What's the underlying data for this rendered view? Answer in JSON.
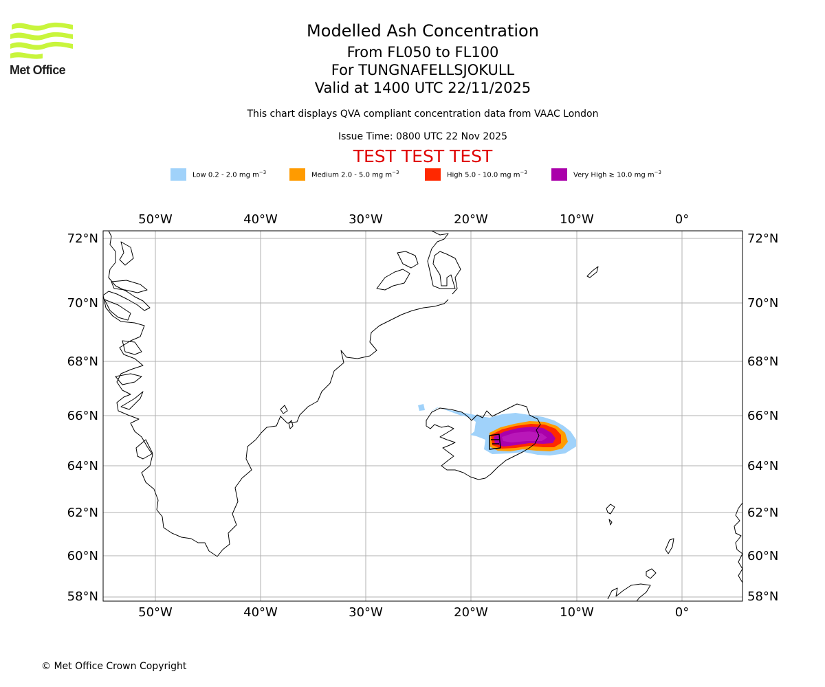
{
  "logo": {
    "text": "Met Office",
    "colors": {
      "waves": "#c8f53c",
      "text": "#222222"
    }
  },
  "header": {
    "title": "Modelled Ash Concentration",
    "levels": "From FL050 to FL100",
    "volcano": "For TUNGNAFELLSJOKULL",
    "valid": "Valid at 1400 UTC 22/11/2025",
    "note": "This chart displays QVA compliant concentration data from VAAC London",
    "issue": "Issue Time: 0800 UTC 22 Nov 2025",
    "test_banner": "TEST TEST TEST"
  },
  "legend": [
    {
      "label": "Low 0.2 - 2.0 mg m",
      "exp": "−3",
      "color": "#a0d2fa"
    },
    {
      "label": "Medium 2.0 - 5.0 mg m",
      "exp": "−3",
      "color": "#ff9b00"
    },
    {
      "label": "High 5.0 - 10.0 mg m",
      "exp": "−3",
      "color": "#ff2800"
    },
    {
      "label": "Very High  ≥  10.0 mg m",
      "exp": "−3",
      "color": "#aa00aa"
    }
  ],
  "map": {
    "projection": "polar stereographic, north-up",
    "lon_range": [
      -55,
      6
    ],
    "lat_range": [
      58,
      72
    ],
    "lon_ticks": [
      "50°W",
      "40°W",
      "30°W",
      "20°W",
      "10°W",
      "0°"
    ],
    "lat_ticks": [
      "72°N",
      "70°N",
      "68°N",
      "66°N",
      "64°N",
      "62°N",
      "60°N",
      "58°N"
    ],
    "gridlines": true,
    "features": [
      "Greenland east coast",
      "Iceland",
      "Jan Mayen",
      "Faroe Islands",
      "Shetland",
      "Norway coast"
    ],
    "ash_plume": {
      "source": "TUNGNAFELLSJOKULL",
      "direction": "east of central Iceland, over Atlantic"
    }
  },
  "footer": {
    "copyright": "© Met Office Crown Copyright"
  }
}
